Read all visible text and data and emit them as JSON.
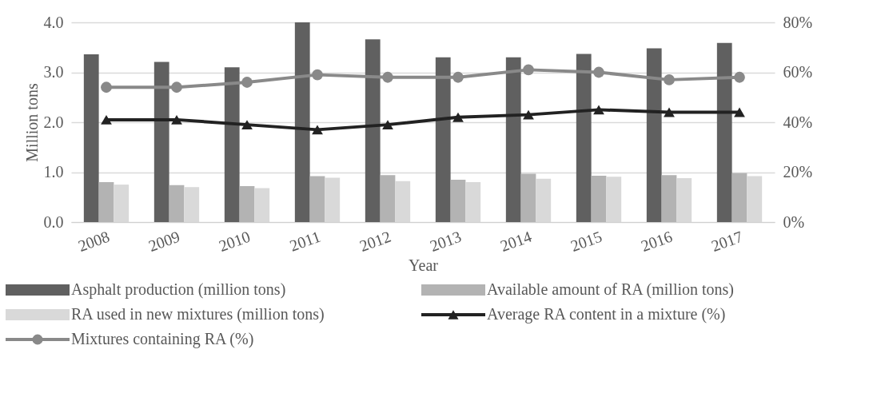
{
  "chart_data": {
    "type": "bar",
    "xlabel": "Year",
    "ylabel": "Million tons",
    "categories": [
      "2008",
      "2009",
      "2010",
      "2011",
      "2012",
      "2013",
      "2014",
      "2015",
      "2016",
      "2017"
    ],
    "series": [
      {
        "name": "Asphalt production (million tons)",
        "color": "#606060",
        "values": [
          3.36,
          3.21,
          3.1,
          4.0,
          3.66,
          3.3,
          3.3,
          3.37,
          3.48,
          3.59
        ]
      },
      {
        "name": "Available amount of RA (million tons)",
        "color": "#b3b3b3",
        "values": [
          0.8,
          0.74,
          0.72,
          0.92,
          0.94,
          0.85,
          0.97,
          0.93,
          0.94,
          0.98
        ]
      },
      {
        "name": "RA used in new mixtures (million tons)",
        "color": "#d9d9d9",
        "values": [
          0.75,
          0.7,
          0.68,
          0.89,
          0.82,
          0.8,
          0.87,
          0.91,
          0.88,
          0.92
        ]
      },
      {
        "name": "Average RA content in a mixture (%)",
        "type": "line",
        "axis": "y2",
        "marker": "triangle",
        "line_style": "solid",
        "color": "#222222",
        "values": [
          41,
          41,
          39,
          37,
          39,
          42,
          43,
          45,
          44,
          44
        ]
      },
      {
        "name": "Mixtures containing RA (%)",
        "type": "line",
        "axis": "y2",
        "marker": "circle",
        "line_style": "solid",
        "color": "#898989",
        "values": [
          54,
          54,
          56,
          59,
          58,
          58,
          61,
          60,
          57,
          58
        ]
      }
    ],
    "ylim": [
      0,
      4
    ],
    "yticks": [
      {
        "value": 0,
        "label": "0.0"
      },
      {
        "value": 1,
        "label": "1.0"
      },
      {
        "value": 2,
        "label": "2.0"
      },
      {
        "value": 3,
        "label": "3.0"
      },
      {
        "value": 4,
        "label": "4.0"
      }
    ],
    "y2lim": [
      0,
      80
    ],
    "y2ticks": [
      {
        "value": 0,
        "label": "0%"
      },
      {
        "value": 20,
        "label": "20%"
      },
      {
        "value": 40,
        "label": "40%"
      },
      {
        "value": 60,
        "label": "60%"
      },
      {
        "value": 80,
        "label": "80%"
      }
    ],
    "grid": "y",
    "legend": "bottom"
  }
}
